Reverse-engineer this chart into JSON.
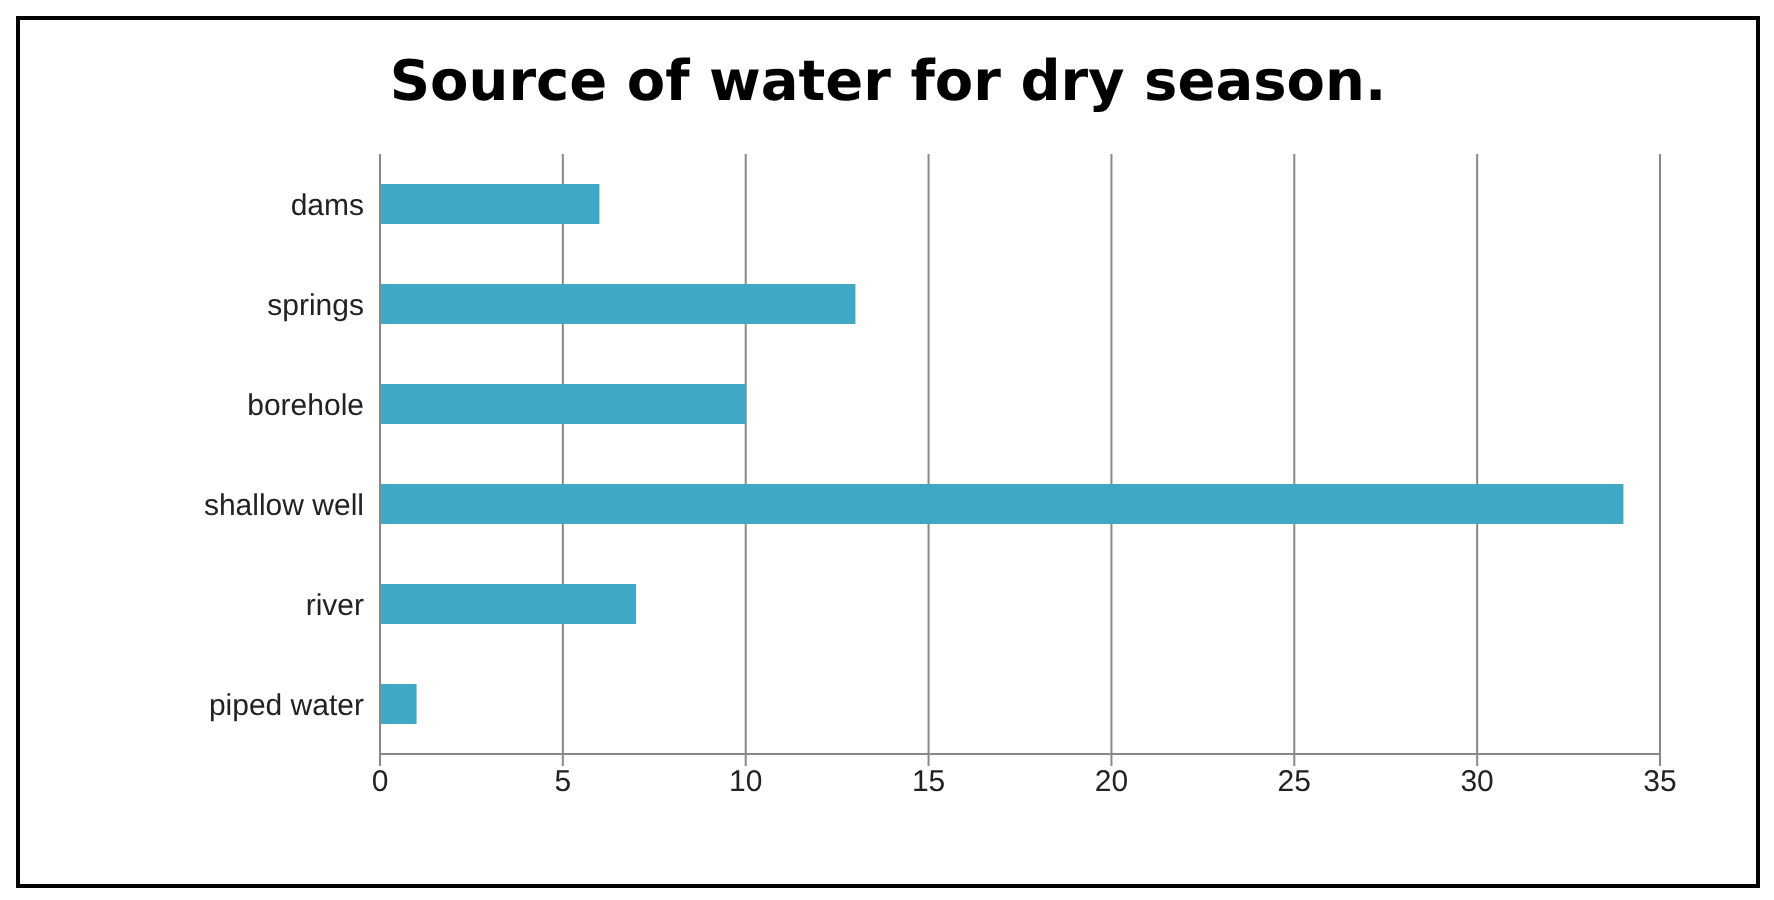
{
  "chart_data": {
    "type": "bar",
    "orientation": "horizontal",
    "title": "Source of water for dry season.",
    "categories": [
      "dams",
      "springs",
      "borehole",
      "shallow well",
      "river",
      "piped water"
    ],
    "values": [
      6,
      13,
      10,
      34,
      7,
      1
    ],
    "color": "#3fa9c5",
    "xlim": [
      0,
      35
    ],
    "xticks": [
      0,
      5,
      10,
      15,
      20,
      25,
      30,
      35
    ],
    "grid": "x"
  }
}
